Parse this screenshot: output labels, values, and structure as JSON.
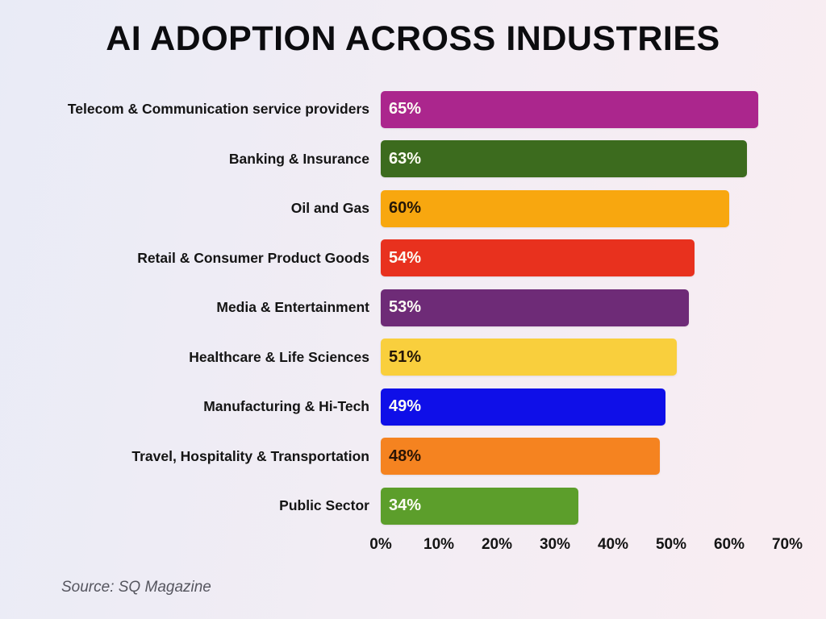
{
  "chart_data": {
    "type": "bar",
    "orientation": "horizontal",
    "title": "AI ADOPTION ACROSS INDUSTRIES",
    "categories": [
      "Telecom & Communication service providers",
      "Banking & Insurance",
      "Oil and Gas",
      "Retail & Consumer Product Goods",
      "Media & Entertainment",
      "Healthcare & Life Sciences",
      "Manufacturing & Hi-Tech",
      "Travel, Hospitality & Transportation",
      "Public Sector"
    ],
    "values": [
      65,
      63,
      60,
      54,
      53,
      51,
      49,
      48,
      34
    ],
    "value_labels": [
      "65%",
      "63%",
      "60%",
      "54%",
      "53%",
      "51%",
      "49%",
      "48%",
      "34%"
    ],
    "bar_colors": [
      "#ab268d",
      "#3c6b1e",
      "#f8a70f",
      "#e8311e",
      "#6e2b77",
      "#f9cf3d",
      "#0f0fe8",
      "#f58320",
      "#5c9e2b"
    ],
    "value_label_colors": [
      "#fdfdf5",
      "#fdfdf2",
      "#241607",
      "#fdfdf5",
      "#fdfdf5",
      "#241607",
      "#fdfdf5",
      "#2a1406",
      "#fdfdf5"
    ],
    "x_ticks": [
      "0%",
      "10%",
      "20%",
      "30%",
      "40%",
      "50%",
      "60%",
      "70%"
    ],
    "x_tick_values": [
      0,
      10,
      20,
      30,
      40,
      50,
      60,
      70
    ],
    "xlim": [
      0,
      70
    ],
    "xlabel": "",
    "ylabel": "",
    "grid": false,
    "legend": false
  },
  "footer": {
    "source": "Source: SQ Magazine"
  },
  "colors": {
    "background_left": "#e9ebf6",
    "background_right": "#f9edf2",
    "title": "#0c0c0f",
    "category_label": "#141414",
    "tick_label": "#141414",
    "source": "#55555e"
  }
}
